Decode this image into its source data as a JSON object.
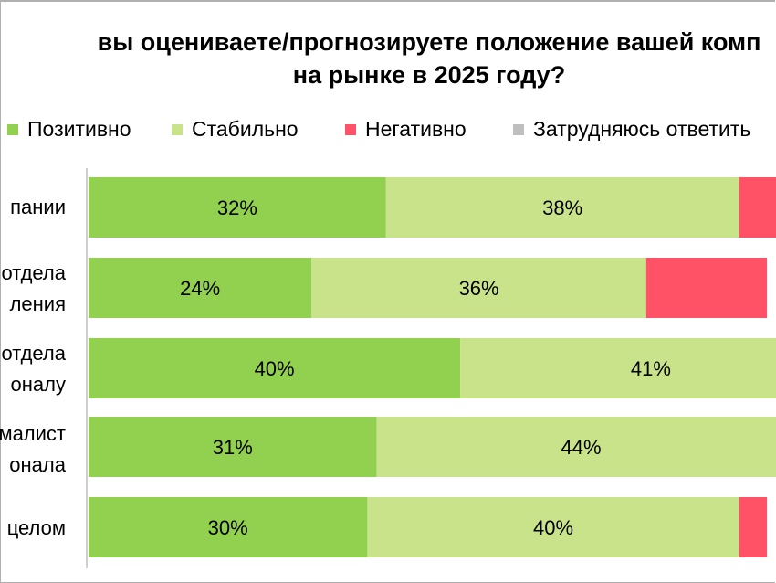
{
  "colors": {
    "positive": "#92d050",
    "stable": "#c9e38a",
    "negative": "#ff5266",
    "hard": "#bfbfbf"
  },
  "chart_data": {
    "type": "bar",
    "orientation": "horizontal",
    "stacked": true,
    "title_lines": [
      "вы оцениваете/прогнозируете положение вашей комп",
      "на рынке в 2025 году?"
    ],
    "categories": [
      [
        "пании"
      ],
      [
        "отдела",
        "ления"
      ],
      [
        "отдела",
        "оналу"
      ],
      [
        "малист",
        "онала"
      ],
      [
        "целом"
      ]
    ],
    "series": [
      {
        "name": "Позитивно",
        "color": "#92d050",
        "values": [
          32,
          24,
          40,
          31,
          30
        ],
        "labels": [
          "32%",
          "24%",
          "40%",
          "31%",
          "30%"
        ]
      },
      {
        "name": "Стабильно",
        "color": "#c9e38a",
        "values": [
          38,
          36,
          41,
          44,
          40
        ],
        "labels": [
          "38%",
          "36%",
          "41%",
          "44%",
          "40%"
        ]
      },
      {
        "name": "Негативно",
        "color": "#ff5266",
        "values": [
          4,
          13,
          0,
          0,
          3
        ],
        "labels": [
          "",
          "",
          "",
          "",
          ""
        ]
      },
      {
        "name": "Затрудняюсь ответить",
        "color": "#bfbfbf",
        "values": [
          0,
          0,
          0,
          0,
          0
        ],
        "labels": [
          "",
          "",
          "",
          "",
          ""
        ]
      }
    ],
    "xlim": [
      0,
      100
    ],
    "legend_position": "top",
    "grid": false
  }
}
